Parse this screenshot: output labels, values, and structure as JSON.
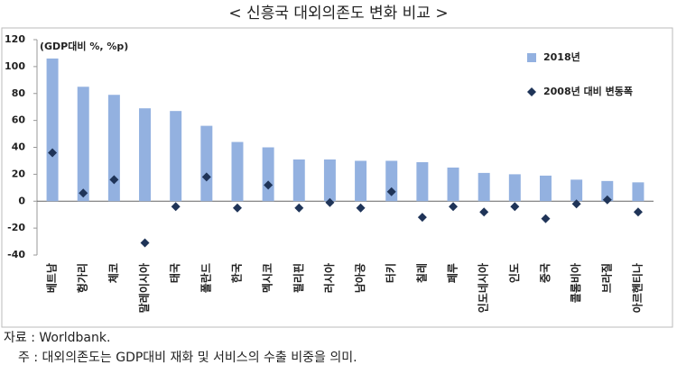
{
  "chart_data": {
    "type": "bar",
    "title": "< 신흥국 대외의존도 변화 비교 >",
    "y_label": "(GDP대비 %, %p)",
    "categories": [
      "베트남",
      "헝가리",
      "체코",
      "말레이시아",
      "태국",
      "폴란드",
      "한국",
      "멕시코",
      "필리핀",
      "러시아",
      "남아공",
      "터키",
      "칠레",
      "페루",
      "인도네시아",
      "인도",
      "중국",
      "콜롬비아",
      "브라질",
      "아르헨티나"
    ],
    "series": [
      {
        "name": "2018년",
        "type": "bar",
        "color": "#93b1e0",
        "values": [
          106,
          85,
          79,
          69,
          67,
          56,
          44,
          40,
          31,
          31,
          30,
          30,
          29,
          25,
          21,
          20,
          19,
          16,
          15,
          14
        ]
      },
      {
        "name": "2008년 대비 변동폭",
        "type": "scatter",
        "marker": "diamond",
        "color": "#1f3458",
        "values": [
          36,
          6,
          16,
          -31,
          -4,
          18,
          -5,
          12,
          -5,
          -1,
          -5,
          7,
          -12,
          -4,
          -8,
          -4,
          -13,
          -2,
          1,
          -8
        ]
      }
    ],
    "ylim": [
      -40,
      120
    ],
    "yticks": [
      -40,
      -20,
      0,
      20,
      40,
      60,
      80,
      100,
      120
    ],
    "grid": false,
    "legend": "top-right",
    "notes": [
      "자료 : Worldbank.",
      "주 : 대외의존도는 GDP대비 재화 및 서비스의 수출 비중을 의미."
    ]
  }
}
